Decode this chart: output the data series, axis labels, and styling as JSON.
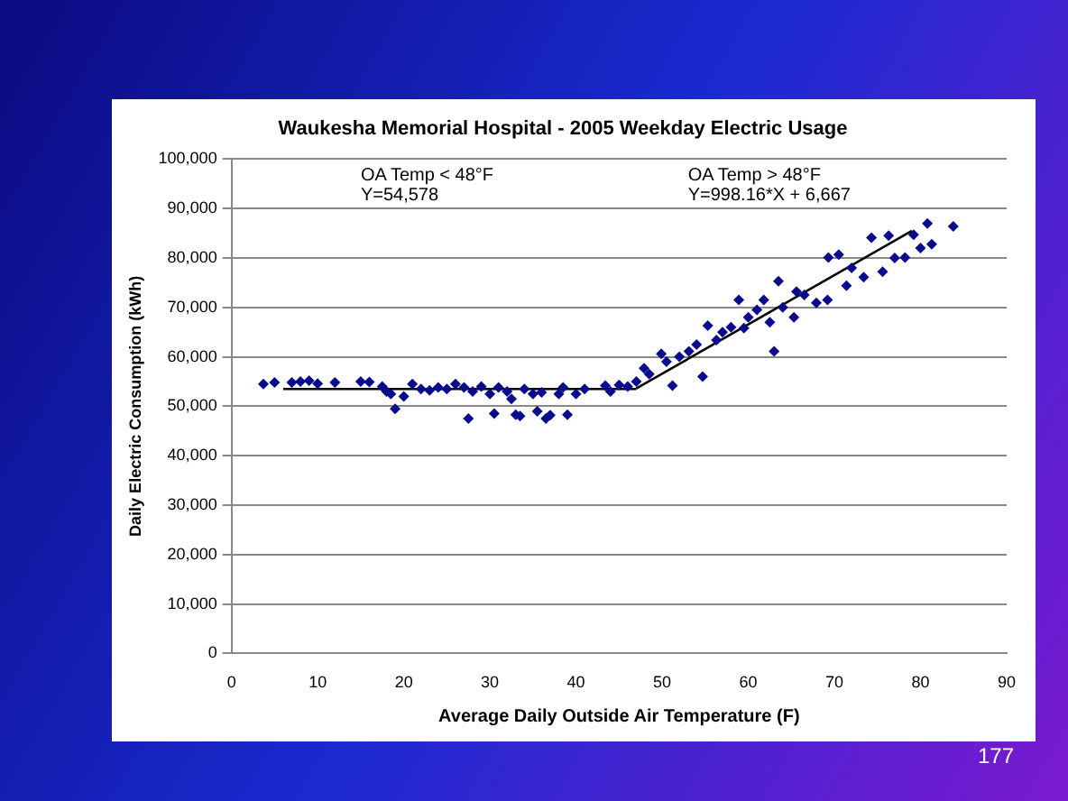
{
  "chart_data": {
    "type": "scatter",
    "title": "Waukesha Memorial Hospital - 2005 Weekday Electric Usage",
    "xlabel": "Average Daily Outside Air Temperature (F)",
    "ylabel": "Daily Electric Consumption (kWh)",
    "annotations": [
      "OA Temp < 48°F\nY=54,578",
      "OA Temp > 48°F\nY=998.16*X + 6,667",
      "177"
    ],
    "xlim": [
      0,
      90
    ],
    "xticks": [
      0,
      10,
      20,
      30,
      40,
      50,
      60,
      70,
      80,
      90
    ],
    "ylim": [
      0,
      100000
    ],
    "yticks": [
      {
        "value": 0,
        "label": "0"
      },
      {
        "value": 10000,
        "label": "10,000"
      },
      {
        "value": 20000,
        "label": "20,000"
      },
      {
        "value": 30000,
        "label": "30,000"
      },
      {
        "value": 40000,
        "label": "40,000"
      },
      {
        "value": 50000,
        "label": "50,000"
      },
      {
        "value": 60000,
        "label": "60,000"
      },
      {
        "value": 70000,
        "label": "70,000"
      },
      {
        "value": 80000,
        "label": "80,000"
      },
      {
        "value": 90000,
        "label": "90,000"
      },
      {
        "value": 100000,
        "label": "100,000"
      }
    ],
    "grid": "y",
    "legend": false,
    "marker": "diamond",
    "series": [
      {
        "type": "scatter",
        "color": "#0a0a8c",
        "x": [
          3.7,
          5,
          7,
          8,
          9,
          10,
          12,
          15,
          16,
          17.5,
          18,
          18.5,
          19,
          20,
          21,
          22,
          23,
          24,
          25,
          26,
          27,
          27.5,
          28,
          29,
          30,
          30.5,
          31,
          32,
          32.5,
          33,
          33.5,
          34,
          35,
          35.5,
          36,
          36.5,
          37,
          38,
          38.5,
          39,
          40,
          41,
          43.4,
          44,
          45,
          46,
          47,
          47.9,
          48.5,
          49.9,
          50.5,
          51.2,
          52,
          53.1,
          54,
          54.7,
          55.3,
          56.3,
          57,
          58,
          58.9,
          59.5,
          60,
          61,
          61.8,
          62.5,
          63,
          63.5,
          64,
          65.3,
          65.6,
          66.5,
          67.9,
          69.2,
          69.3,
          70.5,
          71.4,
          72,
          73.4,
          74.3,
          75.6,
          76.3,
          77,
          78.2,
          79.2,
          80,
          80.8,
          81.3,
          83.8
        ],
        "values": [
          54500,
          54800,
          54800,
          55000,
          55200,
          54600,
          54800,
          55000,
          54900,
          54000,
          53000,
          52500,
          49500,
          52000,
          54500,
          53500,
          53200,
          53800,
          53500,
          54500,
          53800,
          47500,
          53000,
          54000,
          52500,
          48500,
          53800,
          53000,
          51500,
          48300,
          48000,
          53500,
          52500,
          49000,
          52800,
          47500,
          48200,
          52500,
          53800,
          48300,
          52500,
          53500,
          54200,
          53000,
          54300,
          54000,
          55000,
          57700,
          56500,
          60600,
          59000,
          54200,
          60000,
          61100,
          62500,
          56000,
          66300,
          63400,
          65000,
          66000,
          71500,
          65800,
          68000,
          69500,
          71500,
          67000,
          61100,
          75300,
          70000,
          68000,
          73200,
          72500,
          70900,
          71500,
          80100,
          80700,
          74400,
          78000,
          76100,
          84100,
          77200,
          84500,
          80000,
          80100,
          84700,
          82000,
          87000,
          82800,
          86400
        ]
      },
      {
        "type": "line",
        "color": "#000000",
        "marker": "none",
        "x": [
          6,
          47
        ],
        "values": [
          53500,
          53500
        ]
      },
      {
        "type": "line",
        "color": "#000000",
        "marker": "none",
        "x": [
          47,
          79
        ],
        "values": [
          53600,
          85500
        ]
      }
    ]
  }
}
